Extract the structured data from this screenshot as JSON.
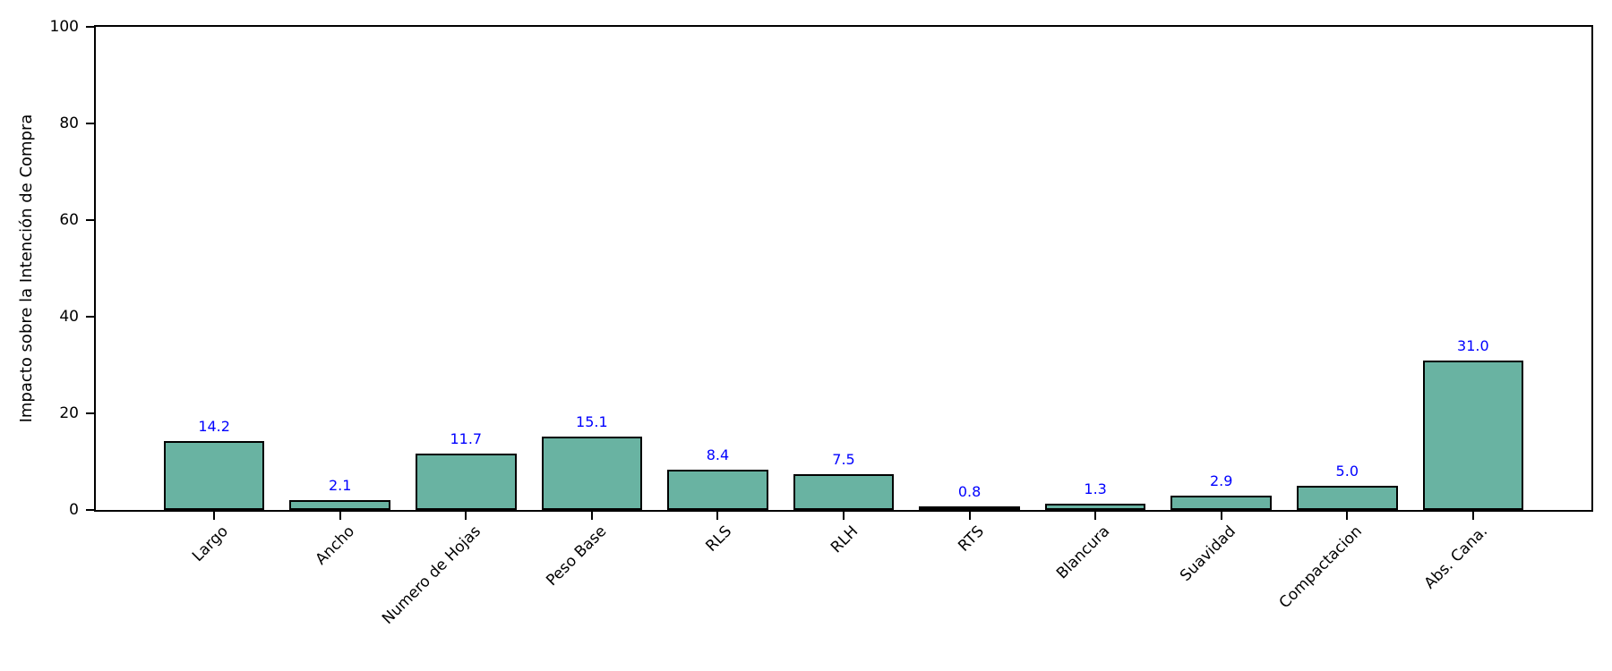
{
  "chart_data": {
    "type": "bar",
    "title": "",
    "xlabel": "",
    "ylabel": "Impacto sobre la Intención de Compra",
    "categories": [
      "Largo",
      "Ancho",
      "Numero de Hojas",
      "Peso Base",
      "RLS",
      "RLH",
      "RTS",
      "Blancura",
      "Suavidad",
      "Compactacion",
      "Abs. Cana."
    ],
    "values": [
      14.2,
      2.1,
      11.7,
      15.1,
      8.4,
      7.5,
      0.8,
      1.3,
      2.9,
      5.0,
      31.0
    ],
    "value_labels": [
      "14.2",
      "2.1",
      "11.7",
      "15.1",
      "8.4",
      "7.5",
      "0.8",
      "1.3",
      "2.9",
      "5.0",
      "31.0"
    ],
    "ylim": [
      0,
      100
    ],
    "yticks": [
      "0",
      "20",
      "40",
      "60",
      "80",
      "100"
    ],
    "x_tick_rotation_deg": 45,
    "grid": false,
    "legend": "none",
    "colors": {
      "bar_fill": "#69b3a2",
      "bar_edge": "#000000",
      "value_label": "#0000ff",
      "axis": "#000000",
      "background": "#ffffff"
    }
  }
}
